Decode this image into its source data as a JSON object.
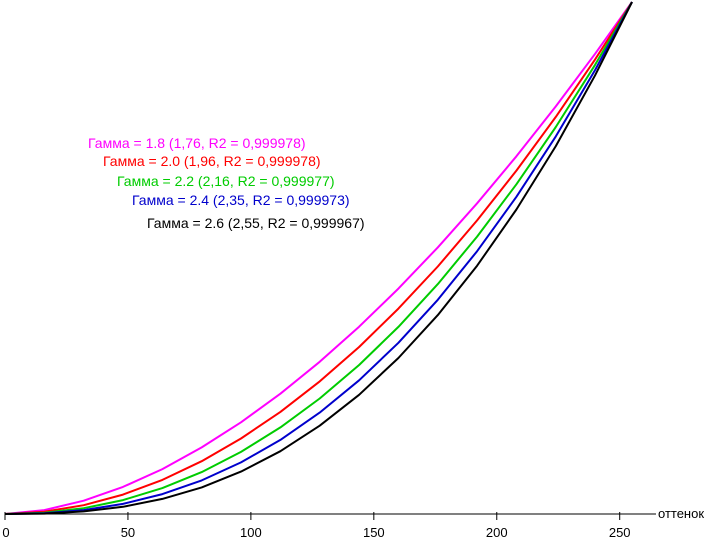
{
  "chart_data": {
    "type": "line",
    "title": "",
    "xlabel": "оттенок",
    "ylabel": "",
    "xlim": [
      0,
      255
    ],
    "ylim": [
      0,
      1
    ],
    "x_ticks": [
      0,
      50,
      100,
      150,
      200,
      250
    ],
    "x": [
      0,
      16,
      32,
      48,
      64,
      80,
      96,
      112,
      128,
      144,
      160,
      176,
      192,
      208,
      224,
      240,
      255
    ],
    "series": [
      {
        "name": "Гамма = 1.8 (1,76, R2 = 0,999978)",
        "color": "#ff00ff",
        "gamma": 1.76
      },
      {
        "name": "Гамма = 2.0 (1,96, R2 = 0,999978)",
        "color": "#ff0000",
        "gamma": 1.96
      },
      {
        "name": "Гамма = 2.2 (2,16, R2 = 0,999977)",
        "color": "#00cc00",
        "gamma": 2.16
      },
      {
        "name": "Гамма = 2.4 (2,35, R2 = 0,999973)",
        "color": "#0000cc",
        "gamma": 2.35
      },
      {
        "name": "Гамма = 2.6 (2,55, R2 = 0,999967)",
        "color": "#000000",
        "gamma": 2.55
      }
    ],
    "grid": false,
    "legend_position": "upper-left, staggered"
  }
}
